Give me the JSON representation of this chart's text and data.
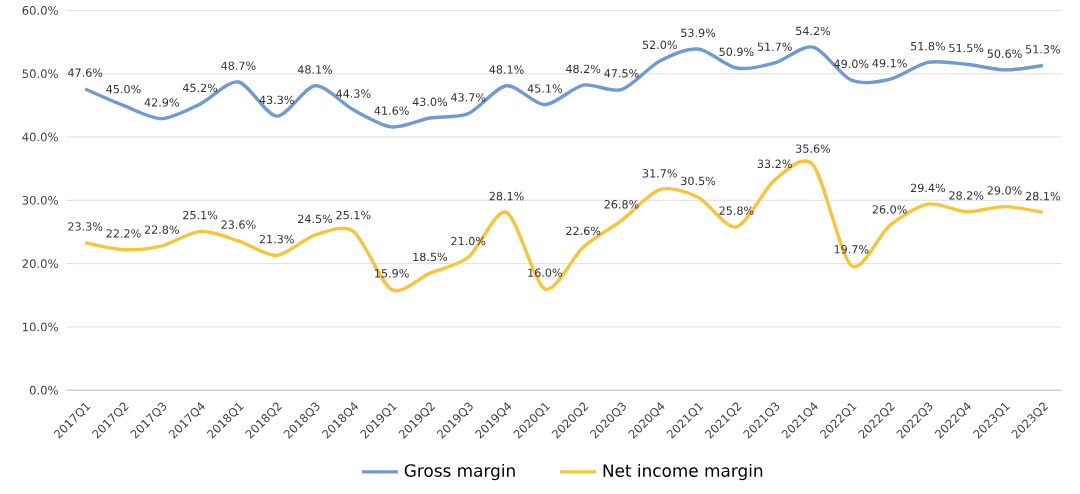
{
  "chart_data": {
    "type": "line",
    "categories": [
      "2017Q1",
      "2017Q2",
      "2017Q3",
      "2017Q4",
      "2018Q1",
      "2018Q2",
      "2018Q3",
      "2018Q4",
      "2019Q1",
      "2019Q2",
      "2019Q3",
      "2019Q4",
      "2020Q1",
      "2020Q2",
      "2020Q3",
      "2020Q4",
      "2021Q1",
      "2021Q2",
      "2021Q3",
      "2021Q4",
      "2022Q1",
      "2022Q2",
      "2022Q3",
      "2022Q4",
      "2023Q1",
      "2023Q2"
    ],
    "series": [
      {
        "name": "Gross margin",
        "color": "#6f9bd2",
        "values": [
          47.6,
          45.0,
          42.9,
          45.2,
          48.7,
          43.3,
          48.1,
          44.3,
          41.6,
          43.0,
          43.7,
          48.1,
          45.1,
          48.2,
          47.5,
          52.0,
          53.9,
          50.9,
          51.7,
          54.2,
          49.0,
          49.1,
          51.8,
          51.5,
          50.6,
          51.3
        ],
        "value_labels": [
          "47.6%",
          "45.0%",
          "42.9%",
          "45.2%",
          "48.7%",
          "43.3%",
          "48.1%",
          "44.3%",
          "41.6%",
          "43.0%",
          "43.7%",
          "48.1%",
          "45.1%",
          "48.2%",
          "47.5%",
          "52.0%",
          "53.9%",
          "50.9%",
          "51.7%",
          "54.2%",
          "49.0%",
          "49.1%",
          "51.8%",
          "51.5%",
          "50.6%",
          "51.3%"
        ]
      },
      {
        "name": "Net income margin",
        "color": "#f8c53a",
        "values": [
          23.3,
          22.2,
          22.8,
          25.1,
          23.6,
          21.3,
          24.5,
          25.1,
          15.9,
          18.5,
          21.0,
          28.1,
          16.0,
          22.6,
          26.8,
          31.7,
          30.5,
          25.8,
          33.2,
          35.6,
          19.7,
          26.0,
          29.4,
          28.2,
          29.0,
          28.1
        ],
        "value_labels": [
          "23.3%",
          "22.2%",
          "22.8%",
          "25.1%",
          "23.6%",
          "21.3%",
          "24.5%",
          "25.1%",
          "15.9%",
          "18.5%",
          "21.0%",
          "28.1%",
          "16.0%",
          "22.6%",
          "26.8%",
          "31.7%",
          "30.5%",
          "25.8%",
          "33.2%",
          "35.6%",
          "19.7%",
          "26.0%",
          "29.4%",
          "28.2%",
          "29.0%",
          "28.1%"
        ]
      }
    ],
    "ylim": [
      0,
      60
    ],
    "yticks": [
      {
        "value": 0,
        "label": "0.0%"
      },
      {
        "value": 10,
        "label": "10.0%"
      },
      {
        "value": 20,
        "label": "20.0%"
      },
      {
        "value": 30,
        "label": "30.0%"
      },
      {
        "value": 40,
        "label": "40.0%"
      },
      {
        "value": 50,
        "label": "50.0%"
      },
      {
        "value": 60,
        "label": "60.0%"
      }
    ],
    "grid": "y",
    "legend": "bottom",
    "marker": "none",
    "line_style": "solid"
  }
}
